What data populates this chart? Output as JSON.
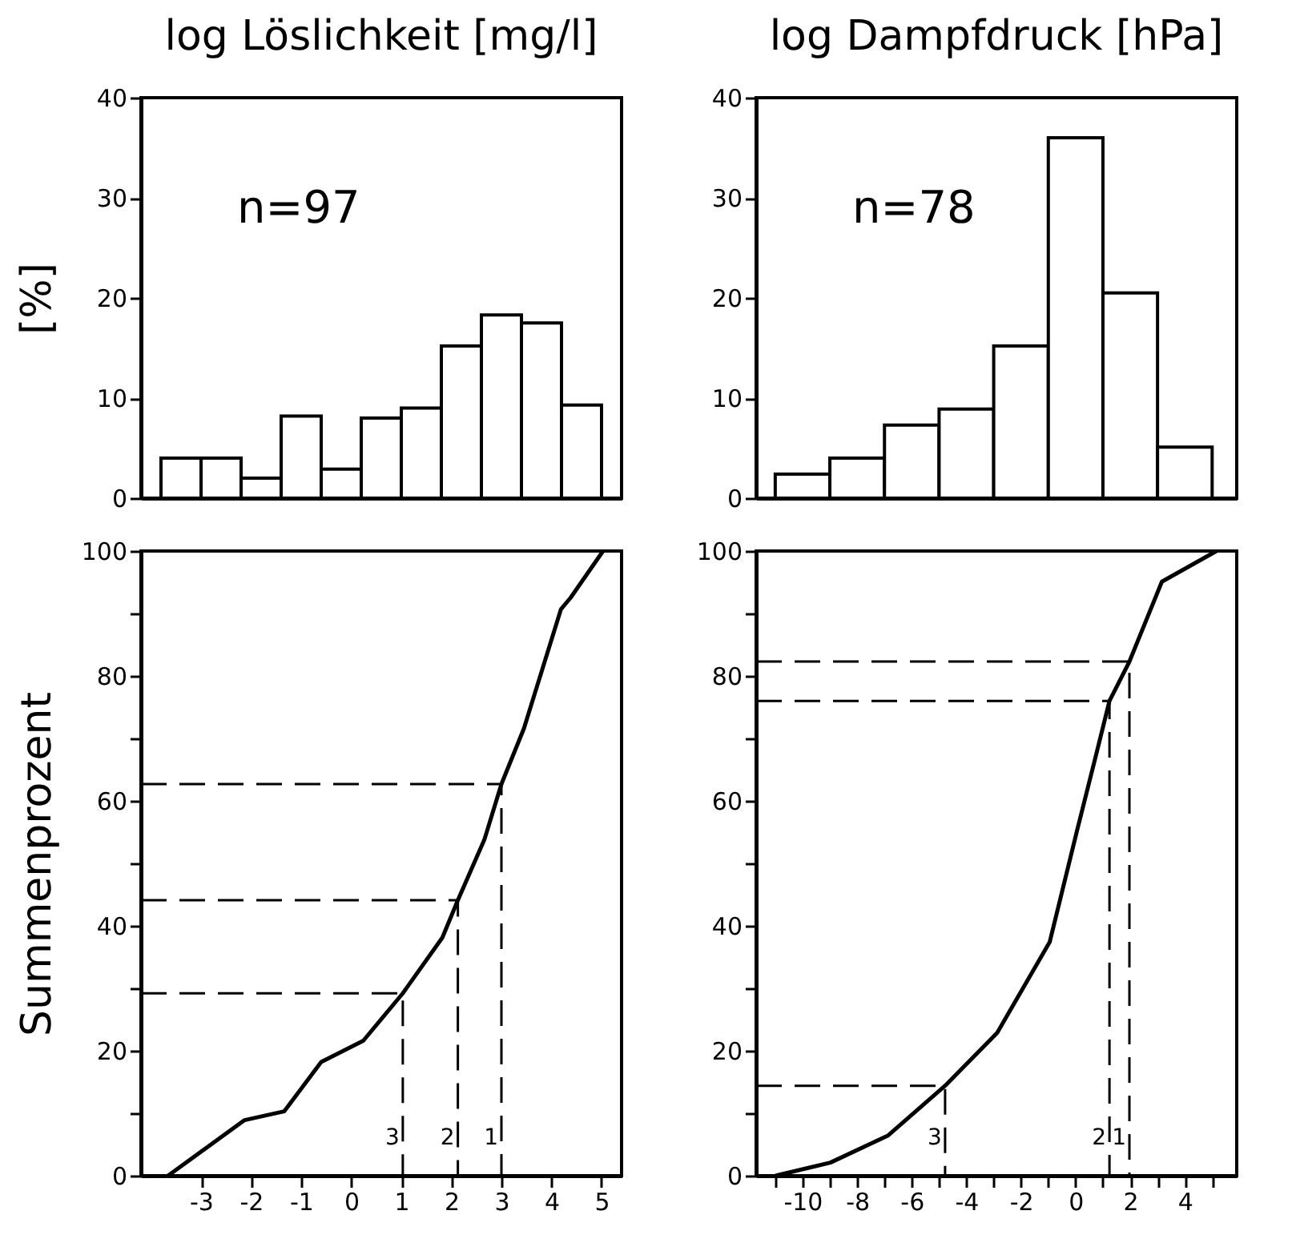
{
  "chart_data": [
    {
      "type": "histogram",
      "title": "log Löslichkeit [mg/l]",
      "ylabel": "[%]",
      "bins": [
        -3.8,
        -3.0,
        -2.2,
        -1.4,
        -0.6,
        0.2,
        1.0,
        1.8,
        2.6,
        3.4,
        4.2,
        5.0
      ],
      "values": [
        4,
        4,
        2,
        8.2,
        2.9,
        8,
        9,
        15.2,
        18.3,
        17.5,
        9.3
      ],
      "xlim": [
        -4.2,
        5.4
      ],
      "ylim": [
        0,
        40
      ],
      "yticks": [
        0,
        10,
        20,
        30,
        40
      ],
      "tick_labels": "y",
      "annotations": [
        "n=97"
      ]
    },
    {
      "type": "histogram",
      "title": "log Dampfdruck [hPa]",
      "bins": [
        -11,
        -9,
        -7,
        -5,
        -3,
        -1,
        1,
        3,
        5
      ],
      "values": [
        2.4,
        4,
        7.3,
        8.9,
        15.2,
        36,
        20.5,
        5.1
      ],
      "xlim": [
        -11.7,
        5.9
      ],
      "ylim": [
        0,
        40
      ],
      "yticks": [
        0,
        10,
        20,
        30,
        40
      ],
      "tick_labels": "y",
      "annotations": [
        "n=78"
      ]
    },
    {
      "type": "line",
      "ylabel": "Summenprozent",
      "x": [
        -3.66,
        -2.13,
        -1.34,
        -0.6,
        0.24,
        1.03,
        1.82,
        2.13,
        2.66,
        3.0,
        3.45,
        4.19,
        4.38,
        5.03
      ],
      "series": [
        {
          "color": "#000000",
          "values": [
            0,
            8.9,
            10.3,
            18.2,
            21.6,
            29.2,
            38.1,
            44.1,
            53.8,
            62.7,
            71.6,
            90.7,
            92.5,
            100
          ]
        },
        {
          "color": "#000000",
          "line_style": "dashed",
          "x": [
            -4.2,
            1.03,
            1.03
          ],
          "values": [
            29.2,
            29.2,
            0
          ]
        },
        {
          "color": "#000000",
          "line_style": "dashed",
          "x": [
            -4.2,
            2.13,
            2.13
          ],
          "values": [
            44.1,
            44.1,
            0
          ]
        },
        {
          "color": "#000000",
          "line_style": "dashed",
          "x": [
            -4.2,
            3.0,
            3.0
          ],
          "values": [
            62.7,
            62.7,
            0
          ]
        }
      ],
      "xlim": [
        -4.2,
        5.4
      ],
      "ylim": [
        0,
        100
      ],
      "xticks": [
        -3,
        -2,
        -1,
        0,
        1,
        2,
        3,
        4,
        5
      ],
      "yticks": [
        0,
        {
          "value": 10,
          "label": null
        },
        20,
        {
          "value": 30,
          "label": null
        },
        40,
        {
          "value": 50,
          "label": null
        },
        60,
        {
          "value": 70,
          "label": null
        },
        80,
        {
          "value": 90,
          "label": null
        },
        100
      ],
      "annotations": [
        {
          "text": "3",
          "x": 1.03,
          "y": 6
        },
        {
          "text": "2",
          "x": 2.13,
          "y": 6
        },
        {
          "text": "1",
          "x": 3.0,
          "y": 6
        }
      ]
    },
    {
      "type": "line",
      "x": [
        -10.99,
        -8.98,
        -6.88,
        -4.78,
        -2.87,
        -0.95,
        0.05,
        0.78,
        1.24,
        1.97,
        3.16,
        5.16
      ],
      "series": [
        {
          "color": "#000000",
          "values": [
            0,
            2.1,
            6.4,
            14.4,
            22.9,
            37.4,
            55.2,
            67.9,
            76.0,
            82.3,
            95.1,
            100
          ]
        },
        {
          "color": "#000000",
          "line_style": "dashed",
          "x": [
            -11.7,
            -4.78,
            -4.78
          ],
          "values": [
            14.4,
            14.4,
            0
          ]
        },
        {
          "color": "#000000",
          "line_style": "dashed",
          "x": [
            -11.7,
            1.24,
            1.24
          ],
          "values": [
            76.0,
            76.0,
            0
          ]
        },
        {
          "color": "#000000",
          "line_style": "dashed",
          "x": [
            -11.7,
            1.97,
            1.97
          ],
          "values": [
            82.3,
            82.3,
            0
          ]
        }
      ],
      "xlim": [
        -11.7,
        5.9
      ],
      "ylim": [
        0,
        100
      ],
      "xticks": [
        {
          "value": -11,
          "label": null
        },
        -10,
        {
          "value": -9,
          "label": null
        },
        -8,
        {
          "value": -7,
          "label": null
        },
        -6,
        {
          "value": -5,
          "label": null
        },
        -4,
        {
          "value": -3,
          "label": null
        },
        -2,
        {
          "value": -1,
          "label": null
        },
        0,
        {
          "value": 1,
          "label": null
        },
        2,
        {
          "value": 3,
          "label": null
        },
        4,
        {
          "value": 5,
          "label": null
        }
      ],
      "yticks": [
        0,
        {
          "value": 10,
          "label": null
        },
        20,
        {
          "value": 30,
          "label": null
        },
        40,
        {
          "value": 50,
          "label": null
        },
        60,
        {
          "value": 70,
          "label": null
        },
        80,
        {
          "value": 90,
          "label": null
        },
        100
      ],
      "annotations": [
        {
          "text": "3",
          "x": -4.78,
          "y": 6
        },
        {
          "text": "2",
          "x": 1.24,
          "y": 6
        },
        {
          "text": "1",
          "x": 1.97,
          "y": 6
        }
      ]
    }
  ]
}
